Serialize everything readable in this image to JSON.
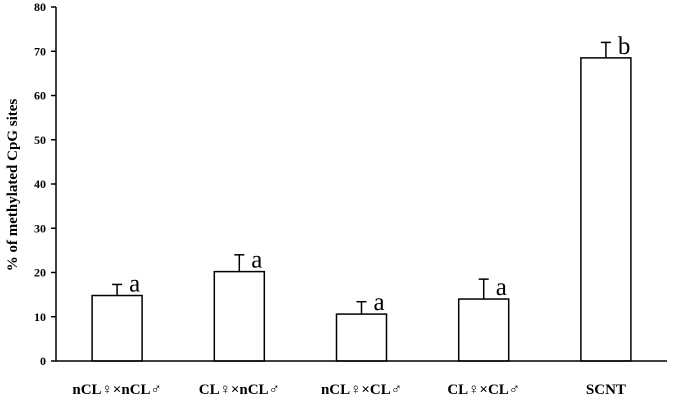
{
  "chart_data": {
    "type": "bar",
    "title": "",
    "xlabel": "",
    "ylabel": "% of methylated CpG sites",
    "ylim": [
      0,
      80
    ],
    "yticks": [
      0,
      10,
      20,
      30,
      40,
      50,
      60,
      70,
      80
    ],
    "categories": [
      "nCL♀×nCL♂",
      "CL♀×nCL♂",
      "nCL♀×CL♂",
      "CL♀×CL♂",
      "SCNT"
    ],
    "values": [
      14.8,
      20.2,
      10.6,
      14.0,
      68.5
    ],
    "error_upper": [
      17.3,
      24.0,
      13.4,
      18.5,
      72.0
    ],
    "significance": [
      "a",
      "a",
      "a",
      "a",
      "b"
    ],
    "bar_fill": "#ffffff",
    "bar_stroke": "#000000",
    "grid": false,
    "legend": "none"
  }
}
